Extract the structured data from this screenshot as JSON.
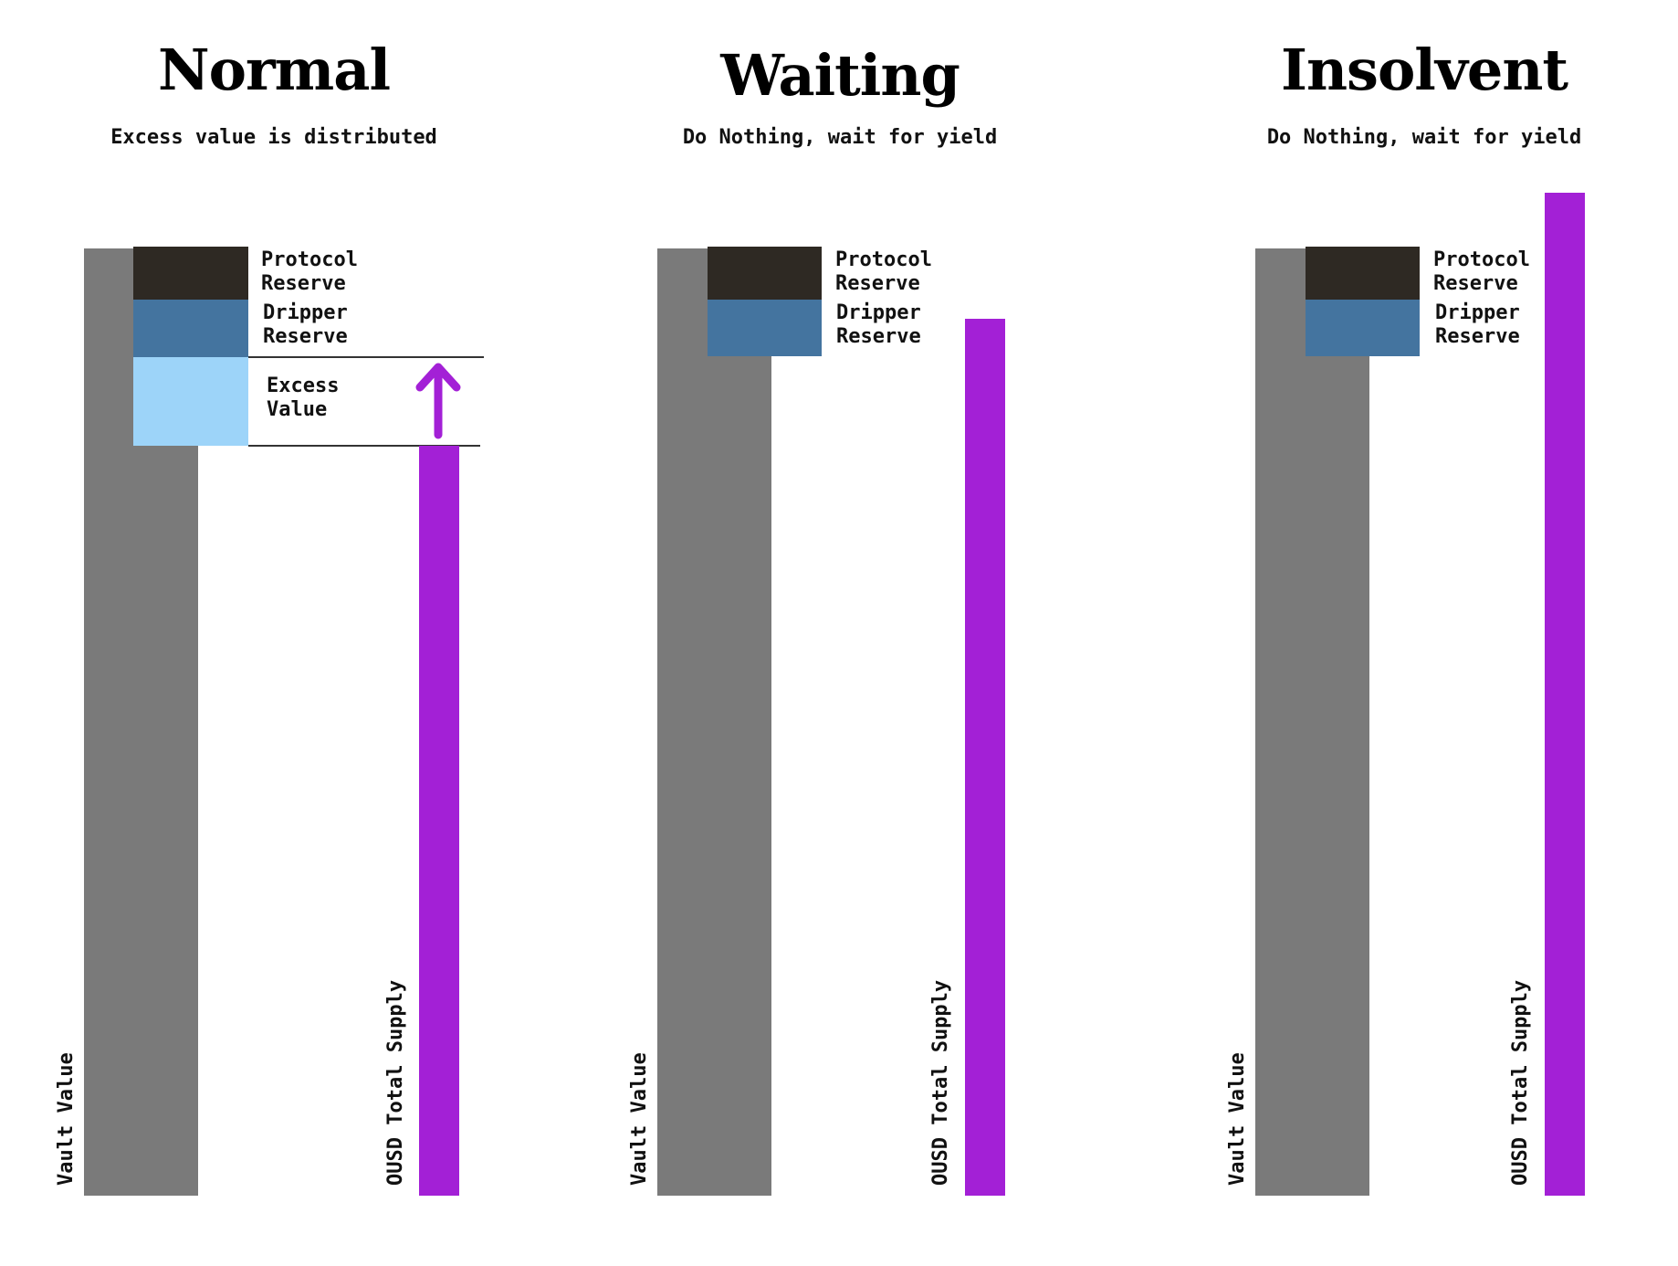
{
  "colors": {
    "vault_value": "#7a7a7a",
    "ousd_total_supply": "#a320d6",
    "protocol_reserve": "#2e2923",
    "dripper_reserve": "#44749f",
    "excess_value": "#9dd4f9"
  },
  "panels": [
    {
      "title": "Normal",
      "subtitle": "Excess value is distributed",
      "protocol_label": [
        "Protocol",
        "Reserve"
      ],
      "dripper_label": [
        "Dripper",
        "Reserve"
      ],
      "excess_label": [
        "Excess",
        "Value"
      ],
      "vault_label": "Vault Value",
      "supply_label": "OUSD Total Supply",
      "has_excess": true,
      "has_up_arrow": true,
      "arrow_icon": "up-arrow-icon"
    },
    {
      "title": "Waiting",
      "subtitle": "Do Nothing, wait for yield",
      "protocol_label": [
        "Protocol",
        "Reserve"
      ],
      "dripper_label": [
        "Dripper",
        "Reserve"
      ],
      "vault_label": "Vault Value",
      "supply_label": "OUSD Total Supply",
      "has_excess": false,
      "has_up_arrow": false
    },
    {
      "title": "Insolvent",
      "subtitle": "Do Nothing, wait for yield",
      "protocol_label": [
        "Protocol",
        "Reserve"
      ],
      "dripper_label": [
        "Dripper",
        "Reserve"
      ],
      "vault_label": "Vault Value",
      "supply_label": "OUSD Total Supply",
      "has_excess": false,
      "has_up_arrow": false
    }
  ]
}
